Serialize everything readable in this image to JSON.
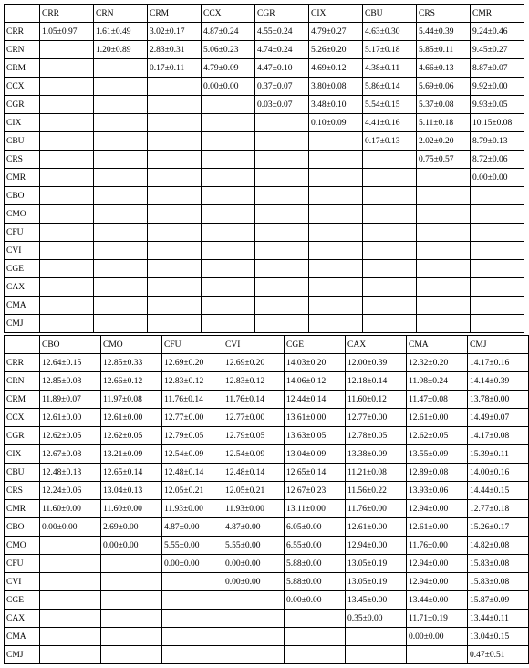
{
  "table1": {
    "columns": [
      "CRR",
      "CRN",
      "CRM",
      "CCX",
      "CGR",
      "CIX",
      "CBU",
      "CRS",
      "CMR"
    ],
    "row_labels": [
      "CRR",
      "CRN",
      "CRM",
      "CCX",
      "CGR",
      "CIX",
      "CBU",
      "CRS",
      "CMR",
      "CBO",
      "CMO",
      "CFU",
      "CVI",
      "CGE",
      "CAX",
      "CMA",
      "CMJ"
    ],
    "rows": [
      [
        "1.05±0.97",
        "1.61±0.49",
        "3.02±0.17",
        "4.87±0.24",
        "4.55±0.24",
        "4.79±0.27",
        "4.63±0.30",
        "5.44±0.39",
        "9.24±0.46"
      ],
      [
        "",
        "1.20±0.89",
        "2.83±0.31",
        "5.06±0.23",
        "4.74±0.24",
        "5.26±0.20",
        "5.17±0.18",
        "5.85±0.11",
        "9.45±0.27"
      ],
      [
        "",
        "",
        "0.17±0.11",
        "4.79±0.09",
        "4.47±0.10",
        "4.69±0.12",
        "4.38±0.11",
        "4.66±0.13",
        "8.87±0.07"
      ],
      [
        "",
        "",
        "",
        "0.00±0.00",
        "0.37±0.07",
        "3.80±0.08",
        "5.86±0.14",
        "5.69±0.06",
        "9.92±0.00"
      ],
      [
        "",
        "",
        "",
        "",
        "0.03±0.07",
        "3.48±0.10",
        "5.54±0.15",
        "5.37±0.08",
        "9.93±0.05"
      ],
      [
        "",
        "",
        "",
        "",
        "",
        "0.10±0.09",
        "4.41±0.16",
        "5.11±0.18",
        "10.15±0.08"
      ],
      [
        "",
        "",
        "",
        "",
        "",
        "",
        "0.17±0.13",
        "2.02±0.20",
        "8.79±0.13"
      ],
      [
        "",
        "",
        "",
        "",
        "",
        "",
        "",
        "0.75±0.57",
        "8.72±0.06"
      ],
      [
        "",
        "",
        "",
        "",
        "",
        "",
        "",
        "",
        "0.00±0.00"
      ],
      [
        "",
        "",
        "",
        "",
        "",
        "",
        "",
        "",
        ""
      ],
      [
        "",
        "",
        "",
        "",
        "",
        "",
        "",
        "",
        ""
      ],
      [
        "",
        "",
        "",
        "",
        "",
        "",
        "",
        "",
        ""
      ],
      [
        "",
        "",
        "",
        "",
        "",
        "",
        "",
        "",
        ""
      ],
      [
        "",
        "",
        "",
        "",
        "",
        "",
        "",
        "",
        ""
      ],
      [
        "",
        "",
        "",
        "",
        "",
        "",
        "",
        "",
        ""
      ],
      [
        "",
        "",
        "",
        "",
        "",
        "",
        "",
        "",
        ""
      ],
      [
        "",
        "",
        "",
        "",
        "",
        "",
        "",
        "",
        ""
      ]
    ]
  },
  "table2": {
    "columns": [
      "CBO",
      "CMO",
      "CFU",
      "CVI",
      "CGE",
      "CAX",
      "CMA",
      "CMJ"
    ],
    "row_labels": [
      "CRR",
      "CRN",
      "CRM",
      "CCX",
      "CGR",
      "CIX",
      "CBU",
      "CRS",
      "CMR",
      "CBO",
      "CMO",
      "CFU",
      "CVI",
      "CGE",
      "CAX",
      "CMA",
      "CMJ"
    ],
    "rows": [
      [
        "12.64±0.15",
        "12.85±0.33",
        "12.69±0.20",
        "12.69±0.20",
        "14.03±0.20",
        "12.00±0.39",
        "12.32±0.20",
        "14.17±0.16"
      ],
      [
        "12.85±0.08",
        "12.66±0.12",
        "12.83±0.12",
        "12.83±0.12",
        "14.06±0.12",
        "12.18±0.14",
        "11.98±0.24",
        "14.14±0.39"
      ],
      [
        "11.89±0.07",
        "11.97±0.08",
        "11.76±0.14",
        "11.76±0.14",
        "12.44±0.14",
        "11.60±0.12",
        "11.47±0.08",
        "13.78±0.00"
      ],
      [
        "12.61±0.00",
        "12.61±0.00",
        "12.77±0.00",
        "12.77±0.00",
        "13.61±0.00",
        "12.77±0.00",
        "12.61±0.00",
        "14.49±0.07"
      ],
      [
        "12.62±0.05",
        "12.62±0.05",
        "12.79±0.05",
        "12.79±0.05",
        "13.63±0.05",
        "12.78±0.05",
        "12.62±0.05",
        "14.17±0.08"
      ],
      [
        "12.67±0.08",
        "13.21±0.09",
        "12.54±0.09",
        "12.54±0.09",
        "13.04±0.09",
        "13.38±0.09",
        "13.55±0.09",
        "15.39±0.11"
      ],
      [
        "12.48±0.13",
        "12.65±0.14",
        "12.48±0.14",
        "12.48±0.14",
        "12.65±0.14",
        "11.21±0.08",
        "12.89±0.08",
        "14.00±0.16"
      ],
      [
        "12.24±0.06",
        "13.04±0.13",
        "12.05±0.21",
        "12.05±0.21",
        "12.67±0.23",
        "11.56±0.22",
        "13.93±0.06",
        "14.44±0.15"
      ],
      [
        "11.60±0.00",
        "11.60±0.00",
        "11.93±0.00",
        "11.93±0.00",
        "13.11±0.00",
        "11.76±0.00",
        "12.94±0.00",
        "12.77±0.18"
      ],
      [
        "0.00±0.00",
        "2.69±0.00",
        "4.87±0.00",
        "4.87±0.00",
        "6.05±0.00",
        "12.61±0.00",
        "12.61±0.00",
        "15.26±0.17"
      ],
      [
        "",
        "0.00±0.00",
        "5.55±0.00",
        "5.55±0.00",
        "6.55±0.00",
        "12.94±0.00",
        "11.76±0.00",
        "14.82±0.08"
      ],
      [
        "",
        "",
        "0.00±0.00",
        "0.00±0.00",
        "5.88±0.00",
        "13.05±0.19",
        "12.94±0.00",
        "15.83±0.08"
      ],
      [
        "",
        "",
        "",
        "0.00±0.00",
        "5.88±0.00",
        "13.05±0.19",
        "12.94±0.00",
        "15.83±0.08"
      ],
      [
        "",
        "",
        "",
        "",
        "0.00±0.00",
        "13.45±0.00",
        "13.44±0.00",
        "15.87±0.09"
      ],
      [
        "",
        "",
        "",
        "",
        "",
        "0.35±0.00",
        "11.71±0.19",
        "13.44±0.11"
      ],
      [
        "",
        "",
        "",
        "",
        "",
        "",
        "0.00±0.00",
        "13.04±0.15"
      ],
      [
        "",
        "",
        "",
        "",
        "",
        "",
        "",
        "0.47±0.51"
      ]
    ]
  },
  "style": {
    "font_family": "Times New Roman",
    "font_size_pt": 9.5,
    "border_color": "#000000",
    "background_color": "#ffffff",
    "text_color": "#000000"
  }
}
